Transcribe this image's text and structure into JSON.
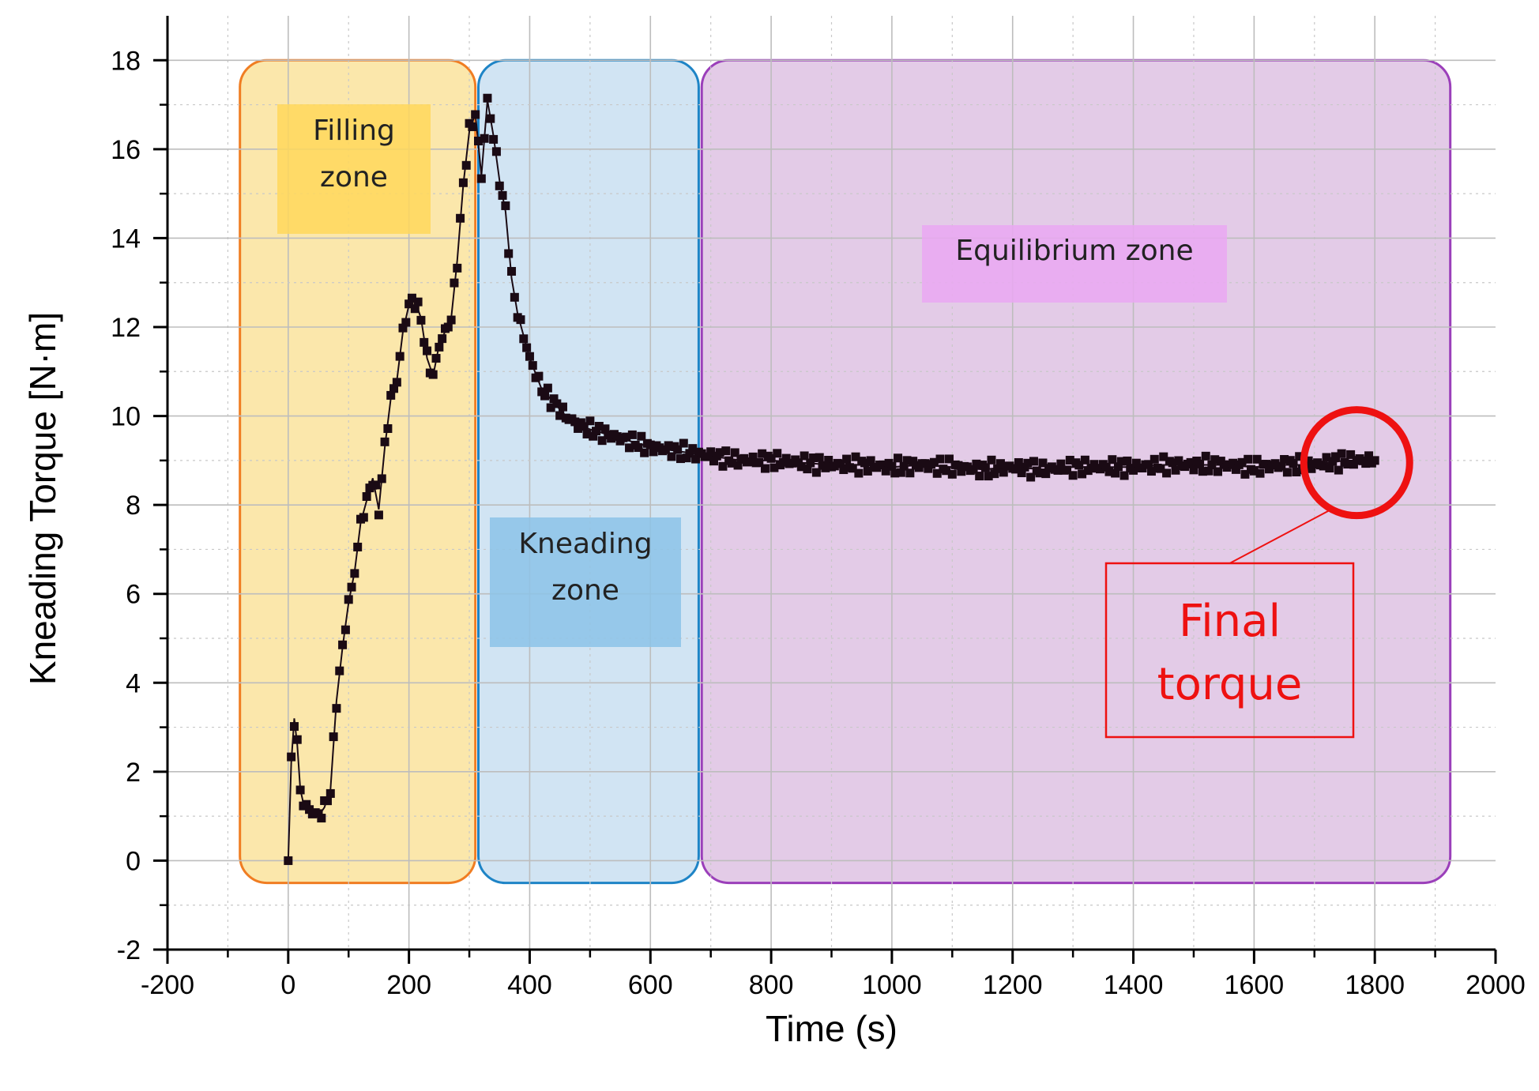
{
  "chart_data": {
    "type": "scatter",
    "xlabel": "Time (s)",
    "ylabel": "Kneading Torque [N·m]",
    "xlim": [
      -200,
      2000
    ],
    "ylim": [
      -2,
      19
    ],
    "x_ticks": [
      -200,
      0,
      200,
      400,
      600,
      800,
      1000,
      1200,
      1400,
      1600,
      1800,
      2000
    ],
    "y_ticks": [
      -2,
      0,
      2,
      4,
      6,
      8,
      10,
      12,
      14,
      16,
      18
    ],
    "grid": true,
    "marker": "square",
    "series": [
      {
        "color": "#1a0a14",
        "x": [
          0,
          5,
          10,
          15,
          20,
          25,
          30,
          40,
          50,
          60,
          70,
          80,
          90,
          100,
          110,
          120,
          130,
          140,
          150,
          160,
          170,
          180,
          190,
          200,
          210,
          220,
          230,
          240,
          250,
          260,
          270,
          280,
          290,
          300,
          310,
          320,
          330,
          340,
          350,
          360,
          370,
          380,
          390,
          400,
          420,
          440,
          460,
          480,
          500,
          525,
          550,
          575,
          600,
          625,
          650,
          675,
          700,
          750,
          800,
          850,
          900,
          950,
          1000,
          1050,
          1100,
          1150,
          1200,
          1250,
          1300,
          1350,
          1400,
          1450,
          1500,
          1550,
          1600,
          1650,
          1700,
          1750,
          1800
        ],
        "y": [
          0,
          2.2,
          3.2,
          2.6,
          1.6,
          1.3,
          1.2,
          1.1,
          1.0,
          1.2,
          1.6,
          3.6,
          4.8,
          5.8,
          6.5,
          7.6,
          8.1,
          8.6,
          7.9,
          9.3,
          10.4,
          10.8,
          11.9,
          12.5,
          12.6,
          12.2,
          11.3,
          10.9,
          11.6,
          11.9,
          12.2,
          13.5,
          15.2,
          16.4,
          16.8,
          15.4,
          17.1,
          16.3,
          15.3,
          14.6,
          13.1,
          12.3,
          11.8,
          11.3,
          10.6,
          10.3,
          10.0,
          9.8,
          9.7,
          9.6,
          9.5,
          9.4,
          9.3,
          9.25,
          9.2,
          9.15,
          9.1,
          9.0,
          9.0,
          8.95,
          8.9,
          8.9,
          8.85,
          8.9,
          8.85,
          8.8,
          8.85,
          8.8,
          8.85,
          8.85,
          8.85,
          8.9,
          8.9,
          8.9,
          8.85,
          8.9,
          8.9,
          9.0,
          9.0
        ]
      }
    ],
    "zones": [
      {
        "label_lines": [
          "Filling",
          "zone"
        ],
        "x_start": -80,
        "x_end": 310,
        "y_start": -0.5,
        "y_end": 18,
        "fill": "#fbe6a6",
        "stroke": "#f07d22",
        "label_bg": "#ffd75a"
      },
      {
        "label_lines": [
          "Kneading",
          "zone"
        ],
        "x_start": 315,
        "x_end": 680,
        "y_start": -0.5,
        "y_end": 18,
        "fill": "#cfe3f2",
        "stroke": "#1e84c6",
        "label_bg": "#8cc3e8"
      },
      {
        "label_lines": [
          "Equilibrium zone"
        ],
        "x_start": 685,
        "x_end": 1925,
        "y_start": -0.5,
        "y_end": 18,
        "fill": "#e2c8e6",
        "stroke": "#9b3fba",
        "label_bg": "#eaa8f2"
      }
    ],
    "annotation": {
      "label_lines": [
        "Final",
        "torque"
      ],
      "target_x": 1770,
      "target_y": 8.95,
      "color": "#ee1111"
    }
  }
}
